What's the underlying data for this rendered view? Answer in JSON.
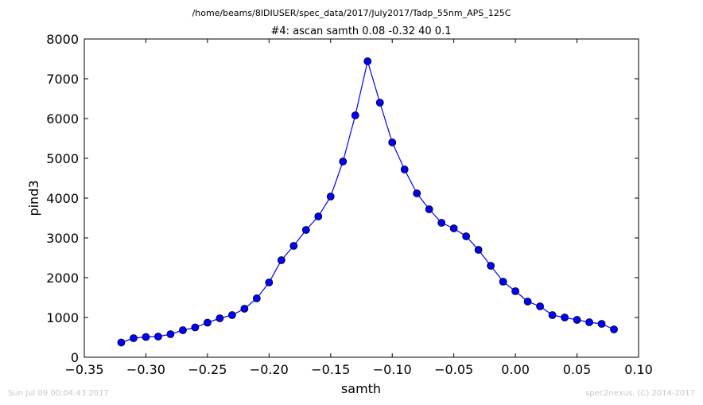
{
  "footer": {
    "timestamp": "Sun Jul 09 00:04:43 2017",
    "credit": "spec2nexus, (C) 2014-2017"
  },
  "chart_data": {
    "type": "line",
    "suptitle": "/home/beams/8IDIUSER/spec_data/2017/July2017/Tadp_55nm_APS_125C",
    "title": "#4: ascan  samth 0.08 -0.32  40 0.1",
    "xlabel": "samth",
    "ylabel": "pind3",
    "xlim": [
      -0.35,
      0.1
    ],
    "ylim": [
      0,
      8000
    ],
    "xticks": [
      "−0.35",
      "−0.30",
      "−0.25",
      "−0.20",
      "−0.15",
      "−0.10",
      "−0.05",
      "0.00",
      "0.05",
      "0.10"
    ],
    "yticks": [
      "0",
      "1000",
      "2000",
      "3000",
      "4000",
      "5000",
      "6000",
      "7000",
      "8000"
    ],
    "grid": false,
    "marker": "circle",
    "color": "#0000ff",
    "series": [
      {
        "x": [
          -0.32,
          -0.31,
          -0.3,
          -0.29,
          -0.28,
          -0.27,
          -0.26,
          -0.25,
          -0.24,
          -0.23,
          -0.22,
          -0.21,
          -0.2,
          -0.19,
          -0.18,
          -0.17,
          -0.16,
          -0.15,
          -0.14,
          -0.13,
          -0.12,
          -0.11,
          -0.1,
          -0.09,
          -0.08,
          -0.07,
          -0.06,
          -0.05,
          -0.04,
          -0.03,
          -0.02,
          -0.01,
          0.0,
          0.01,
          0.02,
          0.03,
          0.04,
          0.05,
          0.06,
          0.07,
          0.08
        ],
        "y": [
          370,
          480,
          510,
          520,
          580,
          680,
          750,
          870,
          980,
          1060,
          1220,
          1480,
          1880,
          2440,
          2800,
          3200,
          3540,
          4040,
          4920,
          6080,
          7440,
          6400,
          5400,
          4720,
          4120,
          3720,
          3380,
          3240,
          3040,
          2700,
          2300,
          1900,
          1660,
          1400,
          1280,
          1060,
          1000,
          940,
          880,
          840,
          700
        ]
      }
    ]
  }
}
